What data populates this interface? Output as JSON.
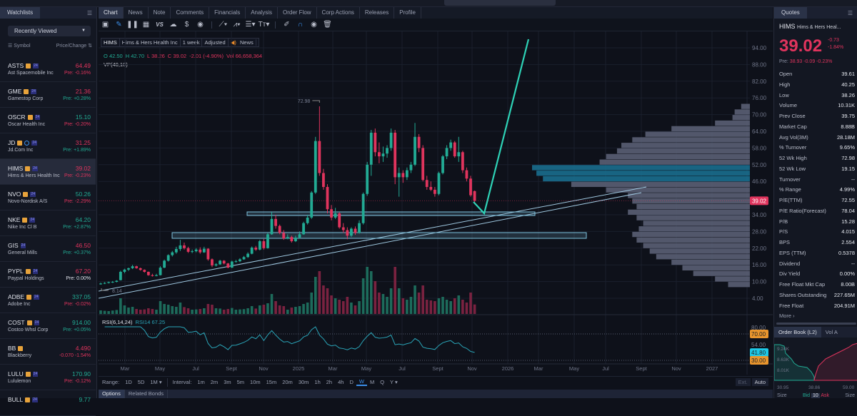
{
  "watchlist": {
    "tab_label": "Watchlists",
    "list_selector": "Recently Viewed",
    "col_symbol": "Symbol",
    "col_price": "Price/Change",
    "items": [
      {
        "symbol": "ASTS",
        "name": "Ast Spacemobile Inc",
        "price": "64.49",
        "change": "Pre: -0.16%",
        "price_dir": "dn",
        "change_dir": "dn",
        "earnings": true,
        "ext24": true
      },
      {
        "symbol": "GME",
        "name": "Gamestop Corp",
        "price": "21.36",
        "change": "Pre: +0.28%",
        "price_dir": "dn",
        "change_dir": "up",
        "earnings": true,
        "ext24": true
      },
      {
        "symbol": "OSCR",
        "name": "Oscar Health Inc",
        "price": "15.10",
        "change": "Pre: -0.20%",
        "price_dir": "up",
        "change_dir": "dn",
        "earnings": true,
        "ext24": true
      },
      {
        "symbol": "JD",
        "name": "Jd.Com Inc",
        "price": "31.25",
        "change": "Pre: +1.89%",
        "price_dir": "dn",
        "change_dir": "up",
        "earnings": true,
        "info": true,
        "ext24": true
      },
      {
        "symbol": "HIMS",
        "name": "Hims & Hers Health Inc",
        "price": "39.02",
        "change": "Pre: -0.23%",
        "price_dir": "dn",
        "change_dir": "dn",
        "earnings": true,
        "ext24": true,
        "selected": true
      },
      {
        "symbol": "NVO",
        "name": "Novo-Nordisk A/S",
        "price": "50.26",
        "change": "Pre: -2.29%",
        "price_dir": "up",
        "change_dir": "dn",
        "earnings": true,
        "ext24": true
      },
      {
        "symbol": "NKE",
        "name": "Nike Inc Cl B",
        "price": "64.20",
        "change": "Pre: +2.87%",
        "price_dir": "up",
        "change_dir": "up",
        "earnings": true,
        "ext24": true
      },
      {
        "symbol": "GIS",
        "name": "General Mills",
        "price": "46.50",
        "change": "Pre: +0.37%",
        "price_dir": "dn",
        "change_dir": "up",
        "earnings": false,
        "ext24": true
      },
      {
        "symbol": "PYPL",
        "name": "Paypal Holdings",
        "price": "67.20",
        "change": "Pre: 0.00%",
        "price_dir": "dn",
        "change_dir": "neu",
        "earnings": true,
        "ext24": true
      },
      {
        "symbol": "ADBE",
        "name": "Adobe Inc",
        "price": "337.05",
        "change": "Pre: -0.02%",
        "price_dir": "up",
        "change_dir": "dn",
        "earnings": true,
        "ext24": true
      },
      {
        "symbol": "COST",
        "name": "Costco Whsl Corp",
        "price": "914.00",
        "change": "Pre: +0.05%",
        "price_dir": "up",
        "change_dir": "up",
        "earnings": true,
        "ext24": true
      },
      {
        "symbol": "BB",
        "name": "Blackberry",
        "price": "4.490",
        "change": "-0.070 -1.54%",
        "price_dir": "dn",
        "change_dir": "dn",
        "earnings": true,
        "ext24": false
      },
      {
        "symbol": "LULU",
        "name": "Lululemon",
        "price": "170.90",
        "change": "Pre: -0.12%",
        "price_dir": "up",
        "change_dir": "dn",
        "earnings": true,
        "ext24": true
      },
      {
        "symbol": "BULL",
        "name": "",
        "price": "9.77",
        "change": "",
        "price_dir": "up",
        "change_dir": "up",
        "earnings": true,
        "ext24": true
      }
    ]
  },
  "chart_tabs": [
    "Chart",
    "News",
    "Note",
    "Comments",
    "Financials",
    "Analysis",
    "Order Flow",
    "Corp Actions",
    "Releases",
    "Profile"
  ],
  "toolbar_icons": [
    "chart-type-icon",
    "draw-pencil-icon",
    "candle-icon",
    "layout-grid-icon",
    "compare-vs-icon",
    "cloud-icon",
    "dollar-icon",
    "dividend-icon",
    "|",
    "trendline-tool-icon",
    "pattern-tool-icon",
    "fib-tool-icon",
    "text-tool-icon",
    "|",
    "brush-icon",
    "magnet-icon",
    "eye-icon",
    "trash-icon"
  ],
  "info_bar": {
    "symbol": "HIMS",
    "name": "Hims & Hers Health Inc",
    "interval": "1 week",
    "adjust": "Adjusted",
    "news": "News"
  },
  "ohlc": {
    "o_label": "O",
    "o": "42.50",
    "h_label": "H",
    "h": "42.70",
    "l_label": "L",
    "l": "38.26",
    "c_label": "C",
    "c": "39.02",
    "change": "-2.01 (-4.90%)",
    "vol_label": "Vol",
    "vol": "66,658,364"
  },
  "vp_label": "VP(40,10)",
  "rsi": {
    "label": "RSI(6,14,24)",
    "value": "RSI14 67.25",
    "ticks": [
      "80.00",
      "70.00",
      "54.00",
      "41.80",
      "30.00"
    ]
  },
  "annotations": {
    "high": "72.98",
    "low": "8.14"
  },
  "last_price_tag": "39.02",
  "colors": {
    "up": "#22ab94",
    "down": "#e0345d",
    "accent": "#3b8ee8",
    "drawing": "#2ed3b7",
    "zone": "#7fc4e0",
    "vp": "#5a5f74",
    "vp_value_area": "#1a6e8e",
    "rsi": "#2aa5b8",
    "rsi_band": "#e8952d"
  },
  "chart_data": {
    "type": "candlestick",
    "interval": "1 week",
    "y_ticks": [
      "94.00",
      "88.00",
      "82.00",
      "76.00",
      "70.00",
      "64.00",
      "58.00",
      "52.00",
      "46.00",
      "34.00",
      "28.00",
      "22.00",
      "16.00",
      "10.00",
      "4.00"
    ],
    "ylim": [
      4,
      94
    ],
    "x_tick_labels": [
      "Mar",
      "May",
      "Jul",
      "Sept",
      "Nov",
      "2025",
      "Mar",
      "May",
      "Jul",
      "Sept",
      "Nov",
      "2026",
      "Mar",
      "May",
      "Jul",
      "Sept",
      "Nov",
      "2027"
    ],
    "candles_ohlcv_millions": [
      [
        9.0,
        9.6,
        8.9,
        9.3,
        25
      ],
      [
        9.3,
        9.8,
        9.1,
        9.5,
        22
      ],
      [
        9.5,
        10.0,
        9.3,
        9.8,
        20
      ],
      [
        9.8,
        10.2,
        9.5,
        9.9,
        24
      ],
      [
        9.9,
        10.5,
        9.7,
        10.3,
        28
      ],
      [
        10.5,
        13.9,
        10.4,
        13.5,
        110
      ],
      [
        13.5,
        14.6,
        13.0,
        14.3,
        60
      ],
      [
        14.3,
        15.0,
        13.8,
        14.8,
        45
      ],
      [
        14.8,
        16.0,
        14.5,
        15.5,
        50
      ],
      [
        15.5,
        15.7,
        14.6,
        14.8,
        35
      ],
      [
        14.8,
        15.0,
        13.9,
        14.2,
        30
      ],
      [
        14.2,
        14.4,
        13.2,
        13.5,
        32
      ],
      [
        13.5,
        13.6,
        12.1,
        12.3,
        40
      ],
      [
        12.3,
        12.8,
        11.8,
        12.0,
        35
      ],
      [
        12.0,
        12.8,
        11.9,
        12.3,
        30
      ],
      [
        12.3,
        15.5,
        12.2,
        15.0,
        90
      ],
      [
        15.0,
        17.9,
        14.8,
        17.5,
        70
      ],
      [
        17.5,
        19.8,
        17.2,
        19.5,
        65
      ],
      [
        19.5,
        21.0,
        19.0,
        20.5,
        55
      ],
      [
        20.5,
        22.5,
        20.0,
        21.7,
        50
      ],
      [
        21.7,
        25.0,
        21.0,
        23.0,
        80
      ],
      [
        23.0,
        24.0,
        21.5,
        22.0,
        48
      ],
      [
        22.0,
        22.5,
        20.3,
        20.7,
        40
      ],
      [
        20.7,
        21.5,
        20.2,
        20.9,
        30
      ],
      [
        20.9,
        22.0,
        20.5,
        21.5,
        32
      ],
      [
        21.5,
        22.3,
        20.0,
        20.5,
        35
      ],
      [
        20.5,
        22.5,
        20.3,
        21.8,
        40
      ],
      [
        21.8,
        22.0,
        17.5,
        18.0,
        70
      ],
      [
        18.0,
        18.3,
        15.2,
        15.8,
        65
      ],
      [
        15.8,
        16.6,
        15.4,
        16.2,
        40
      ],
      [
        16.2,
        17.8,
        16.0,
        17.5,
        38
      ],
      [
        17.5,
        17.7,
        16.2,
        16.5,
        30
      ],
      [
        16.5,
        16.7,
        14.8,
        15.0,
        35
      ],
      [
        15.0,
        17.5,
        14.9,
        17.2,
        42
      ],
      [
        17.2,
        17.8,
        16.8,
        17.3,
        30
      ],
      [
        17.3,
        18.4,
        17.0,
        18.0,
        32
      ],
      [
        18.0,
        19.2,
        17.8,
        18.8,
        34
      ],
      [
        18.8,
        20.5,
        18.5,
        20.0,
        40
      ],
      [
        20.0,
        22.6,
        19.8,
        22.2,
        55
      ],
      [
        22.2,
        22.8,
        21.0,
        21.5,
        38
      ],
      [
        21.5,
        25.0,
        21.2,
        24.5,
        60
      ],
      [
        24.5,
        25.3,
        21.5,
        22.0,
        65
      ],
      [
        22.0,
        27.5,
        21.8,
        27.0,
        75
      ],
      [
        27.0,
        35.0,
        26.8,
        32.5,
        140
      ],
      [
        32.5,
        34.0,
        29.0,
        30.0,
        90
      ],
      [
        30.0,
        30.5,
        27.0,
        27.5,
        60
      ],
      [
        27.5,
        28.5,
        25.0,
        25.5,
        55
      ],
      [
        25.5,
        27.0,
        25.2,
        26.0,
        30
      ],
      [
        26.0,
        26.5,
        24.0,
        24.5,
        45
      ],
      [
        24.5,
        26.5,
        24.2,
        25.8,
        50
      ],
      [
        25.8,
        28.0,
        25.5,
        27.0,
        55
      ],
      [
        27.0,
        31.5,
        26.8,
        31.0,
        70
      ],
      [
        31.0,
        34.0,
        30.5,
        33.0,
        80
      ],
      [
        33.0,
        42.5,
        32.5,
        42.0,
        150
      ],
      [
        42.0,
        62.0,
        41.5,
        60.5,
        260
      ],
      [
        60.5,
        72.98,
        48.0,
        49.0,
        300
      ],
      [
        49.0,
        50.5,
        43.0,
        44.0,
        200
      ],
      [
        44.0,
        45.0,
        34.5,
        36.0,
        180
      ],
      [
        36.0,
        37.5,
        32.0,
        33.0,
        130
      ],
      [
        33.0,
        36.5,
        32.5,
        34.5,
        110
      ],
      [
        34.5,
        35.0,
        29.0,
        29.5,
        100
      ],
      [
        29.5,
        31.0,
        27.5,
        28.5,
        90
      ],
      [
        28.5,
        29.5,
        25.2,
        26.5,
        120
      ],
      [
        26.5,
        29.5,
        26.0,
        29.0,
        80
      ],
      [
        29.0,
        29.8,
        26.8,
        27.5,
        60
      ],
      [
        27.5,
        32.0,
        27.2,
        31.0,
        90
      ],
      [
        31.0,
        42.0,
        30.5,
        41.5,
        250
      ],
      [
        41.5,
        53.0,
        40.8,
        52.0,
        330
      ],
      [
        52.0,
        64.5,
        48.0,
        63.5,
        300
      ],
      [
        63.5,
        65.0,
        55.0,
        56.5,
        230
      ],
      [
        56.5,
        60.0,
        52.5,
        55.0,
        150
      ],
      [
        55.0,
        58.5,
        53.0,
        56.0,
        140
      ],
      [
        56.0,
        59.0,
        54.5,
        58.0,
        120
      ],
      [
        58.0,
        65.0,
        57.0,
        63.5,
        180
      ],
      [
        63.5,
        64.5,
        45.0,
        47.5,
        330
      ],
      [
        47.5,
        51.0,
        40.5,
        49.0,
        180
      ],
      [
        49.0,
        50.0,
        45.5,
        47.5,
        110
      ],
      [
        47.5,
        51.0,
        46.5,
        50.0,
        100
      ],
      [
        50.0,
        53.0,
        49.0,
        52.0,
        120
      ],
      [
        52.0,
        67.0,
        51.5,
        62.0,
        200
      ],
      [
        62.0,
        63.0,
        56.5,
        58.0,
        150
      ],
      [
        58.0,
        59.0,
        46.0,
        46.5,
        200
      ],
      [
        46.5,
        48.0,
        43.0,
        44.0,
        100
      ],
      [
        44.0,
        46.0,
        42.5,
        43.0,
        95
      ],
      [
        43.0,
        44.0,
        40.5,
        41.5,
        90
      ],
      [
        41.5,
        49.5,
        41.0,
        49.0,
        110
      ],
      [
        49.0,
        55.5,
        48.5,
        55.0,
        120
      ],
      [
        55.0,
        59.0,
        54.0,
        58.0,
        100
      ],
      [
        58.0,
        61.0,
        57.0,
        60.0,
        90
      ],
      [
        60.0,
        60.5,
        54.5,
        55.0,
        110
      ],
      [
        55.0,
        62.0,
        53.0,
        56.5,
        130
      ],
      [
        56.5,
        57.0,
        49.0,
        50.0,
        100
      ],
      [
        50.0,
        51.0,
        46.0,
        47.0,
        80
      ],
      [
        47.0,
        48.0,
        40.5,
        41.03,
        150
      ],
      [
        42.5,
        42.7,
        38.26,
        39.02,
        66.66
      ]
    ],
    "volume_profile": {
      "bin_centers": [
        73,
        71,
        69,
        67,
        65,
        63,
        61,
        59,
        57,
        55,
        53,
        51,
        49,
        47,
        45,
        43,
        41,
        39,
        37,
        35,
        33,
        31,
        29,
        27,
        25,
        23,
        21,
        19,
        17,
        15,
        13,
        11,
        9
      ],
      "relative_volume": [
        4,
        7,
        8,
        16,
        36,
        48,
        54,
        59,
        61,
        66,
        69,
        100,
        98,
        95,
        82,
        66,
        56,
        54,
        52,
        56,
        52,
        49,
        51,
        54,
        52,
        49,
        46,
        43,
        36,
        31,
        26,
        16,
        10
      ],
      "value_area_bins": [
        51,
        49,
        47
      ]
    }
  },
  "range_bar": {
    "range_label": "Range:",
    "ranges": [
      "1D",
      "5D",
      "1M ▾"
    ],
    "interval_label": "Interval:",
    "intervals": [
      "1m",
      "2m",
      "3m",
      "5m",
      "10m",
      "15m",
      "20m",
      "30m",
      "1h",
      "2h",
      "4h",
      "D",
      "W",
      "M",
      "Q",
      "Y ▾"
    ],
    "selected_interval": "W",
    "ext": "Ext.",
    "auto": "Auto"
  },
  "bottom_tabs": [
    "Options",
    "Related Bonds"
  ],
  "quotes": {
    "tab_label": "Quotes",
    "symbol": "HIMS",
    "name": "Hims & Hers Heal...",
    "price": "39.02",
    "change": "-0.73",
    "change_pct": "-1.84%",
    "pre_label": "Pre:",
    "pre": "38.93 -0.09 -0.23%",
    "rows": [
      {
        "k": "Open",
        "v": "39.61",
        "dir": "dn"
      },
      {
        "k": "High",
        "v": "40.25",
        "dir": "up"
      },
      {
        "k": "Low",
        "v": "38.26",
        "dir": "dn"
      },
      {
        "k": "Volume",
        "v": "10.31K"
      },
      {
        "k": "Prev Close",
        "v": "39.75"
      },
      {
        "k": "Market Cap",
        "v": "8.88B"
      },
      {
        "k": "Avg Vol(3M)",
        "v": "28.18M"
      },
      {
        "k": "% Turnover",
        "v": "9.65%"
      },
      {
        "k": "52 Wk High",
        "v": "72.98"
      },
      {
        "k": "52 Wk Low",
        "v": "19.15"
      },
      {
        "k": "Turnover",
        "v": "--"
      },
      {
        "k": "% Range",
        "v": "4.99%"
      },
      {
        "k": "P/E(TTM)",
        "v": "72.55"
      },
      {
        "k": "P/E Ratio(Forecast)",
        "v": "78.04"
      },
      {
        "k": "P/B",
        "v": "15.28"
      },
      {
        "k": "P/S",
        "v": "4.015"
      },
      {
        "k": "BPS",
        "v": "2.554"
      },
      {
        "k": "EPS (TTM)",
        "v": "0.5378"
      },
      {
        "k": "Dividend",
        "v": "--"
      },
      {
        "k": "Div Yield",
        "v": "0.00%"
      },
      {
        "k": "Free Float Mkt Cap",
        "v": "8.00B"
      },
      {
        "k": "Shares Outstanding",
        "v": "227.65M"
      },
      {
        "k": "Free Float",
        "v": "204.91M"
      }
    ],
    "more": "More ›"
  },
  "order_book": {
    "tab_label": "Order Book (L2)",
    "tab2_label": "Vol A",
    "y_labels": [
      "9.24K",
      "8.63K",
      "8.01K"
    ],
    "x_labels": [
      "30.95",
      "38.86",
      "59.00"
    ],
    "footer": {
      "size_left": "Size",
      "bid": "Bid",
      "levels": "10",
      "ask": "Ask",
      "size_right": "Size"
    }
  }
}
